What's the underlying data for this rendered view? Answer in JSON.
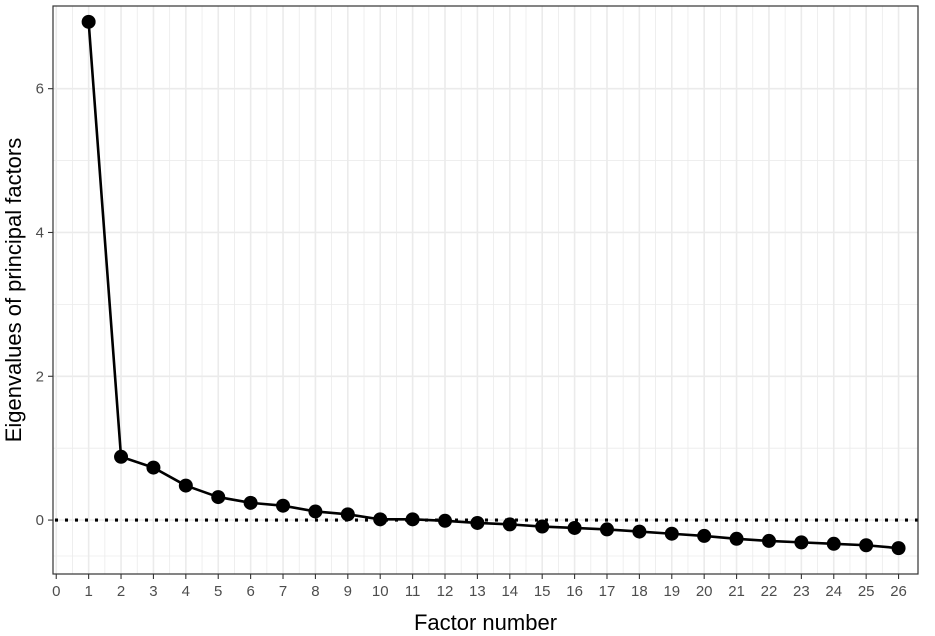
{
  "chart_data": {
    "type": "line",
    "title": "",
    "xlabel": "Factor number",
    "ylabel": "Eigenvalues of principal factors",
    "xlim": [
      -0.1,
      26.6
    ],
    "ylim": [
      -0.75,
      7.15
    ],
    "x_ticks": [
      0,
      1,
      2,
      3,
      4,
      5,
      6,
      7,
      8,
      9,
      10,
      11,
      12,
      13,
      14,
      15,
      16,
      17,
      18,
      19,
      20,
      21,
      22,
      23,
      24,
      25,
      26
    ],
    "y_ticks": [
      0,
      2,
      4,
      6
    ],
    "x_tick_labels": [
      "0",
      "1",
      "2",
      "3",
      "4",
      "5",
      "6",
      "7",
      "8",
      "9",
      "10",
      "11",
      "12",
      "13",
      "14",
      "15",
      "16",
      "17",
      "18",
      "19",
      "20",
      "21",
      "22",
      "23",
      "24",
      "25",
      "26"
    ],
    "y_tick_labels": [
      "0",
      "2",
      "4",
      "6"
    ],
    "grid": true,
    "reference_line": {
      "y": 0,
      "style": "dotted"
    },
    "series": [
      {
        "x": [
          1,
          2,
          3,
          4,
          5,
          6,
          7,
          8,
          9,
          10,
          11,
          12,
          13,
          14,
          15,
          16,
          17,
          18,
          19,
          20,
          21,
          22,
          23,
          24,
          25,
          26
        ],
        "y": [
          6.93,
          0.88,
          0.73,
          0.48,
          0.32,
          0.24,
          0.2,
          0.12,
          0.08,
          0.01,
          0.01,
          -0.01,
          -0.04,
          -0.06,
          -0.09,
          -0.11,
          -0.13,
          -0.16,
          -0.19,
          -0.22,
          -0.26,
          -0.29,
          -0.31,
          -0.33,
          -0.35,
          -0.39
        ]
      }
    ],
    "colors": {
      "line": "#000000",
      "point": "#000000",
      "grid": "#ebebeb",
      "panel_border": "#333333",
      "tick_text": "#4d4d4d"
    }
  }
}
